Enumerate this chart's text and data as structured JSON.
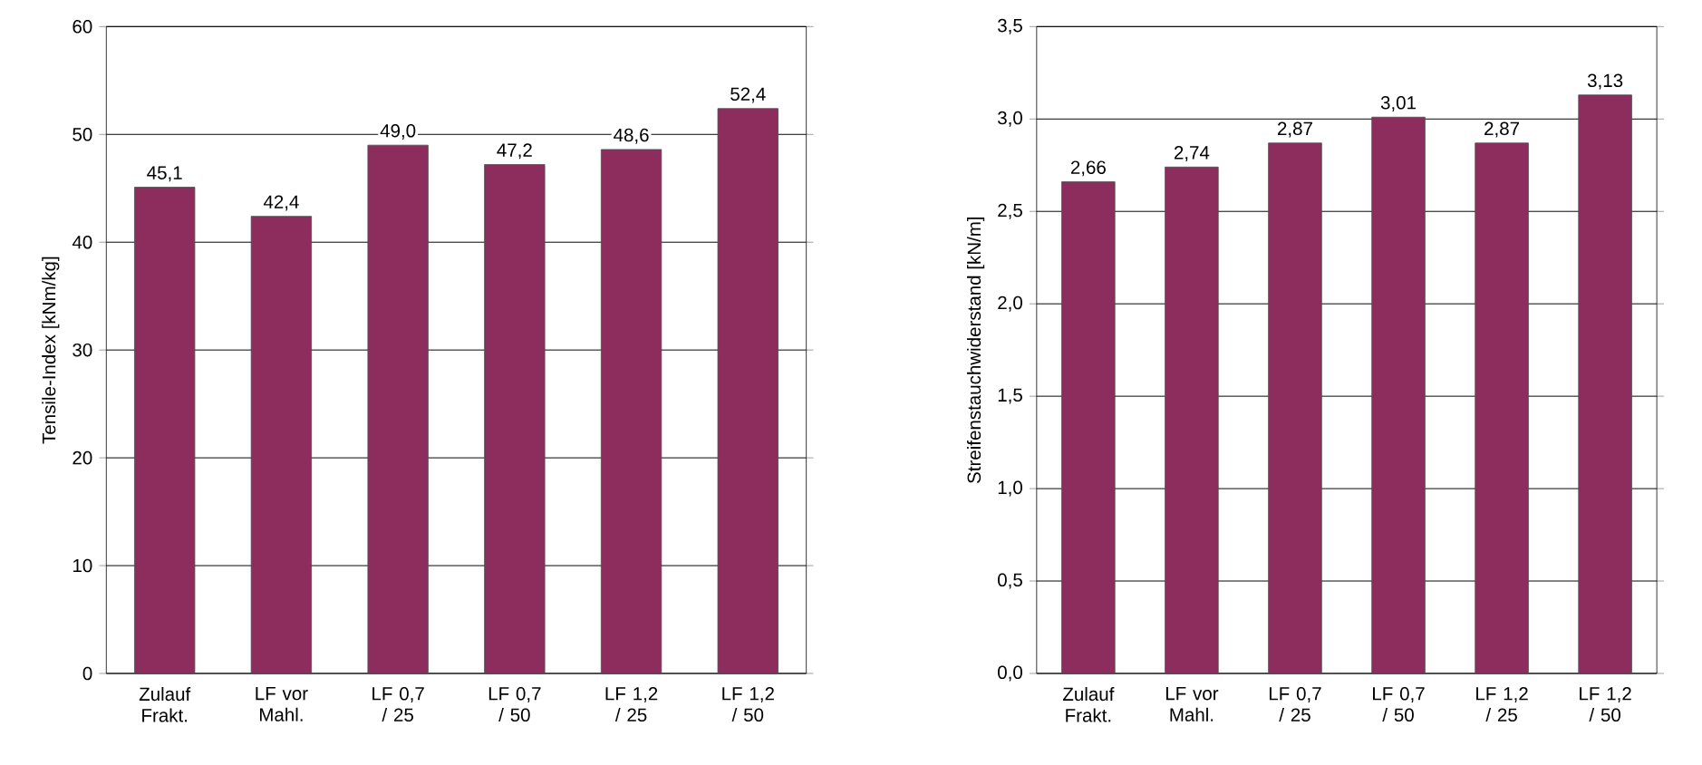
{
  "chart_data": [
    {
      "type": "bar",
      "ylabel": "Tensile-Index [kNm/kg]",
      "categories": [
        "Zulauf Frakt.",
        "LF vor Mahl.",
        "LF 0,7 / 25",
        "LF 0,7 / 50",
        "LF 1,2 / 25",
        "LF 1,2 / 50"
      ],
      "values": [
        45.1,
        42.4,
        49.0,
        47.2,
        48.6,
        52.4
      ],
      "value_labels": [
        "45,1",
        "42,4",
        "49,0",
        "47,2",
        "48,6",
        "52,4"
      ],
      "color": "#8c2d5e",
      "ylim": [
        0,
        60
      ],
      "yticks": [
        0,
        10,
        20,
        30,
        40,
        50,
        60
      ],
      "grid": "y"
    },
    {
      "type": "bar",
      "ylabel": "Streifenstauchwiderstand [kN/m]",
      "categories": [
        "Zulauf Frakt.",
        "LF vor Mahl.",
        "LF 0,7 / 25",
        "LF 0,7 / 50",
        "LF 1,2 / 25",
        "LF 1,2 / 50"
      ],
      "values": [
        2.66,
        2.74,
        2.87,
        3.01,
        2.87,
        3.13
      ],
      "value_labels": [
        "2,66",
        "2,74",
        "2,87",
        "3,01",
        "2,87",
        "3,13"
      ],
      "color": "#8c2d5e",
      "ylim": [
        0,
        3.5
      ],
      "yticks": [
        {
          "value": 0,
          "label": "0,0"
        },
        {
          "value": 0.5,
          "label": "0,5"
        },
        {
          "value": 1,
          "label": "1,0"
        },
        {
          "value": 1.5,
          "label": "1,5"
        },
        {
          "value": 2,
          "label": "2,0"
        },
        {
          "value": 2.5,
          "label": "2,5"
        },
        {
          "value": 3,
          "label": "3,0"
        },
        {
          "value": 3.5,
          "label": "3,5"
        }
      ],
      "grid": "y"
    }
  ]
}
